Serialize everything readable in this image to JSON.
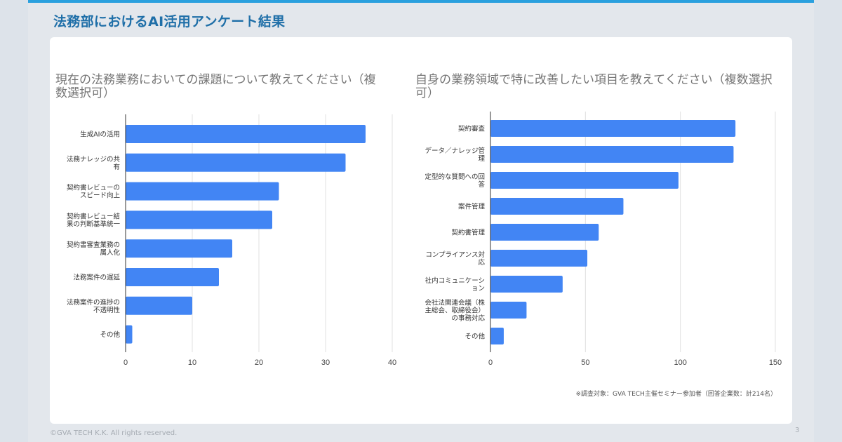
{
  "slide": {
    "title": "法務部におけるAI活用アンケート結果",
    "note": "※調査対象：GVA TECH主催セミナー参加者（回答企業数：計214名）",
    "footer": "©GVA TECH K.K. All rights reserved.",
    "page_number": "3",
    "colors": {
      "accent": "#2aa0de",
      "title": "#1f6fa8",
      "bar": "#4285f4"
    }
  },
  "chart_data": [
    {
      "type": "bar",
      "orientation": "horizontal",
      "title": "現在の法務業務においての課題について教えてください（複数選択可）",
      "categories": [
        [
          "生成AIの活用"
        ],
        [
          "法務ナレッジの共",
          "有"
        ],
        [
          "契約書レビューの",
          "スピード向上"
        ],
        [
          "契約書レビュー結",
          "果の判断基準統一"
        ],
        [
          "契約書審査業務の",
          "属人化"
        ],
        [
          "法務案件の遅延"
        ],
        [
          "法務案件の進捗の",
          "不透明性"
        ],
        [
          "その他"
        ]
      ],
      "values": [
        36,
        33,
        23,
        22,
        16,
        14,
        10,
        1
      ],
      "xlim": [
        0,
        40
      ],
      "xticks": [
        0,
        10,
        20,
        30,
        40
      ],
      "grid": true,
      "legend": "none"
    },
    {
      "type": "bar",
      "orientation": "horizontal",
      "title": "自身の業務領域で特に改善したい項目を教えてください（複数選択可）",
      "categories": [
        [
          "契約審査"
        ],
        [
          "データ／ナレッジ管",
          "理"
        ],
        [
          "定型的な質問への回",
          "答"
        ],
        [
          "案件管理"
        ],
        [
          "契約書管理"
        ],
        [
          "コンプライアンス対",
          "応"
        ],
        [
          "社内コミュニケーシ",
          "ョン"
        ],
        [
          "会社法関連会議（株",
          "主総会、取締役会）",
          "の事務対応"
        ],
        [
          "その他"
        ]
      ],
      "values": [
        129,
        128,
        99,
        70,
        57,
        51,
        38,
        19,
        7
      ],
      "xlim": [
        0,
        150
      ],
      "xticks": [
        0,
        50,
        100,
        150
      ],
      "grid": true,
      "legend": "none"
    }
  ]
}
